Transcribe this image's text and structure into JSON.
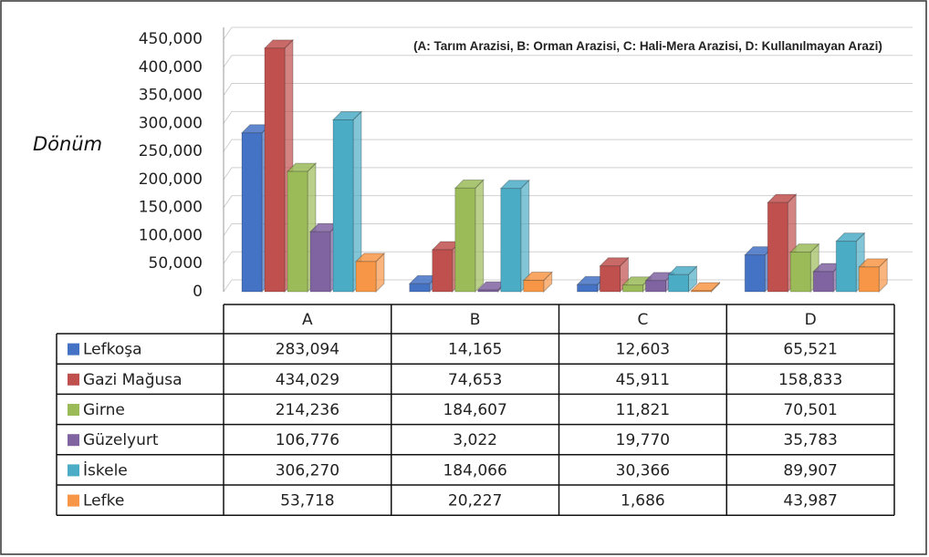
{
  "chart_data": {
    "type": "bar3d",
    "annotation": "(A: Tarım Arazisi, B: Orman Arazisi, C: Hali-Mera Arazisi, D: Kullanılmayan Arazi)",
    "y_label": "Dönüm",
    "categories": [
      "A",
      "B",
      "C",
      "D"
    ],
    "ylim": [
      0,
      450000
    ],
    "yticks": [
      0,
      {
        "value": 50000,
        "label": "50,000"
      },
      {
        "value": 100000,
        "label": "100,000"
      },
      {
        "value": 150000,
        "label": "150,000"
      },
      {
        "value": 200000,
        "label": "200,000"
      },
      {
        "value": 250000,
        "label": "250,000"
      },
      {
        "value": 300000,
        "label": "300,000"
      },
      {
        "value": 350000,
        "label": "350,000"
      },
      {
        "value": 400000,
        "label": "400,000"
      },
      {
        "value": 450000,
        "label": "450,000"
      }
    ],
    "grid": true,
    "series": [
      {
        "name": "Lefkoşa",
        "color": "#4472c4",
        "values": [
          283094,
          14165,
          12603,
          65521
        ],
        "value_labels": [
          "283,094",
          "14,165",
          "12,603",
          "65,521"
        ]
      },
      {
        "name": "Gazi Mağusa",
        "color": "#c0504d",
        "values": [
          434029,
          74653,
          45911,
          158833
        ],
        "value_labels": [
          "434,029",
          "74,653",
          "45,911",
          "158,833"
        ]
      },
      {
        "name": "Girne",
        "color": "#9bbb59",
        "values": [
          214236,
          184607,
          11821,
          70501
        ],
        "value_labels": [
          "214,236",
          "184,607",
          "11,821",
          "70,501"
        ]
      },
      {
        "name": "Güzelyurt",
        "color": "#8064a2",
        "values": [
          106776,
          3022,
          19770,
          35783
        ],
        "value_labels": [
          "106,776",
          "3,022",
          "19,770",
          "35,783"
        ]
      },
      {
        "name": "İskele",
        "color": "#4bacc6",
        "values": [
          306270,
          184066,
          30366,
          89907
        ],
        "value_labels": [
          "306,270",
          "184,066",
          "30,366",
          "89,907"
        ]
      },
      {
        "name": "Lefke",
        "color": "#f79646",
        "values": [
          53718,
          20227,
          1686,
          43987
        ],
        "value_labels": [
          "53,718",
          "20,227",
          "1,686",
          "43,987"
        ]
      }
    ]
  }
}
